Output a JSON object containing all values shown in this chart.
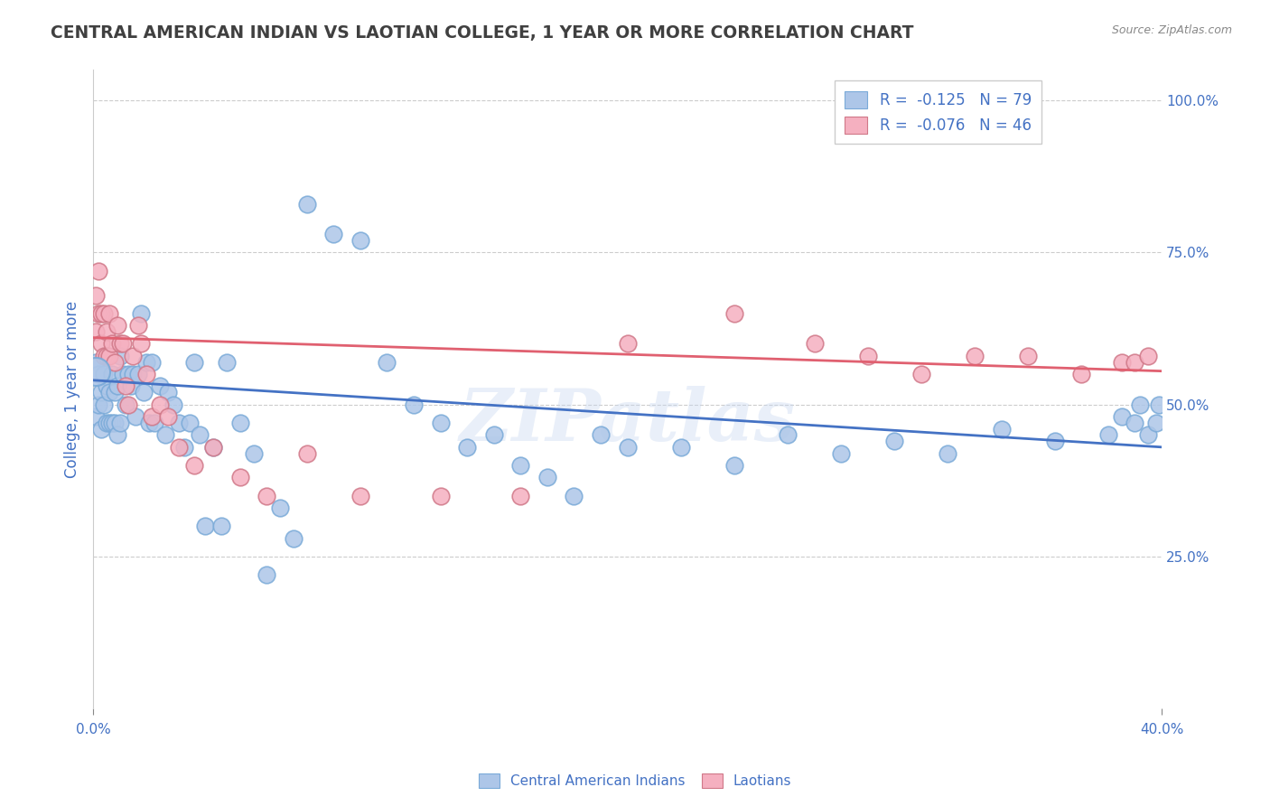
{
  "title": "CENTRAL AMERICAN INDIAN VS LAOTIAN COLLEGE, 1 YEAR OR MORE CORRELATION CHART",
  "source": "Source: ZipAtlas.com",
  "ylabel": "College, 1 year or more",
  "ylabel_right_ticks": [
    "100.0%",
    "75.0%",
    "50.0%",
    "25.0%"
  ],
  "ylabel_right_values": [
    1.0,
    0.75,
    0.5,
    0.25
  ],
  "watermark": "ZIPatlas",
  "legend_blue_label": "Central American Indians",
  "legend_pink_label": "Laotians",
  "blue_R": "-0.125",
  "blue_N": "79",
  "pink_R": "-0.076",
  "pink_N": "46",
  "blue_color": "#adc6e8",
  "pink_color": "#f5b0c0",
  "blue_line_color": "#4472c4",
  "pink_line_color": "#e06070",
  "background_color": "#ffffff",
  "grid_color": "#cccccc",
  "title_color": "#404040",
  "axis_label_color": "#4472c4",
  "blue_scatter_x": [
    0.001,
    0.001,
    0.002,
    0.002,
    0.003,
    0.003,
    0.004,
    0.004,
    0.005,
    0.005,
    0.006,
    0.006,
    0.007,
    0.007,
    0.008,
    0.008,
    0.009,
    0.009,
    0.01,
    0.01,
    0.011,
    0.012,
    0.013,
    0.014,
    0.015,
    0.016,
    0.017,
    0.018,
    0.019,
    0.02,
    0.021,
    0.022,
    0.023,
    0.025,
    0.027,
    0.028,
    0.03,
    0.032,
    0.034,
    0.036,
    0.038,
    0.04,
    0.042,
    0.045,
    0.048,
    0.05,
    0.055,
    0.06,
    0.065,
    0.07,
    0.075,
    0.08,
    0.09,
    0.1,
    0.11,
    0.12,
    0.13,
    0.14,
    0.15,
    0.16,
    0.17,
    0.18,
    0.19,
    0.2,
    0.22,
    0.24,
    0.26,
    0.28,
    0.3,
    0.32,
    0.34,
    0.36,
    0.38,
    0.385,
    0.39,
    0.392,
    0.395,
    0.398,
    0.399
  ],
  "blue_scatter_y": [
    0.57,
    0.48,
    0.55,
    0.5,
    0.52,
    0.46,
    0.55,
    0.5,
    0.53,
    0.47,
    0.52,
    0.47,
    0.55,
    0.47,
    0.52,
    0.47,
    0.53,
    0.45,
    0.58,
    0.47,
    0.55,
    0.5,
    0.55,
    0.53,
    0.55,
    0.48,
    0.55,
    0.65,
    0.52,
    0.57,
    0.47,
    0.57,
    0.47,
    0.53,
    0.45,
    0.52,
    0.5,
    0.47,
    0.43,
    0.47,
    0.57,
    0.45,
    0.3,
    0.43,
    0.3,
    0.57,
    0.47,
    0.42,
    0.22,
    0.33,
    0.28,
    0.83,
    0.78,
    0.77,
    0.57,
    0.5,
    0.47,
    0.43,
    0.45,
    0.4,
    0.38,
    0.35,
    0.45,
    0.43,
    0.43,
    0.4,
    0.45,
    0.42,
    0.44,
    0.42,
    0.46,
    0.44,
    0.45,
    0.48,
    0.47,
    0.5,
    0.45,
    0.47,
    0.5
  ],
  "pink_scatter_x": [
    0.001,
    0.001,
    0.002,
    0.002,
    0.003,
    0.003,
    0.004,
    0.004,
    0.005,
    0.005,
    0.006,
    0.006,
    0.007,
    0.008,
    0.009,
    0.01,
    0.011,
    0.012,
    0.013,
    0.015,
    0.017,
    0.018,
    0.02,
    0.022,
    0.025,
    0.028,
    0.032,
    0.038,
    0.045,
    0.055,
    0.065,
    0.08,
    0.1,
    0.13,
    0.16,
    0.2,
    0.24,
    0.27,
    0.29,
    0.31,
    0.33,
    0.35,
    0.37,
    0.385,
    0.39,
    0.395
  ],
  "pink_scatter_y": [
    0.68,
    0.62,
    0.72,
    0.65,
    0.65,
    0.6,
    0.65,
    0.58,
    0.62,
    0.58,
    0.65,
    0.58,
    0.6,
    0.57,
    0.63,
    0.6,
    0.6,
    0.53,
    0.5,
    0.58,
    0.63,
    0.6,
    0.55,
    0.48,
    0.5,
    0.48,
    0.43,
    0.4,
    0.43,
    0.38,
    0.35,
    0.42,
    0.35,
    0.35,
    0.35,
    0.6,
    0.65,
    0.6,
    0.58,
    0.55,
    0.58,
    0.58,
    0.55,
    0.57,
    0.57,
    0.58
  ],
  "xlim": [
    0.0,
    0.4
  ],
  "ylim": [
    0.0,
    1.05
  ],
  "blue_line_x": [
    0.0,
    0.4
  ],
  "blue_line_y": [
    0.54,
    0.43
  ],
  "pink_line_x": [
    0.0,
    0.4
  ],
  "pink_line_y": [
    0.61,
    0.555
  ]
}
